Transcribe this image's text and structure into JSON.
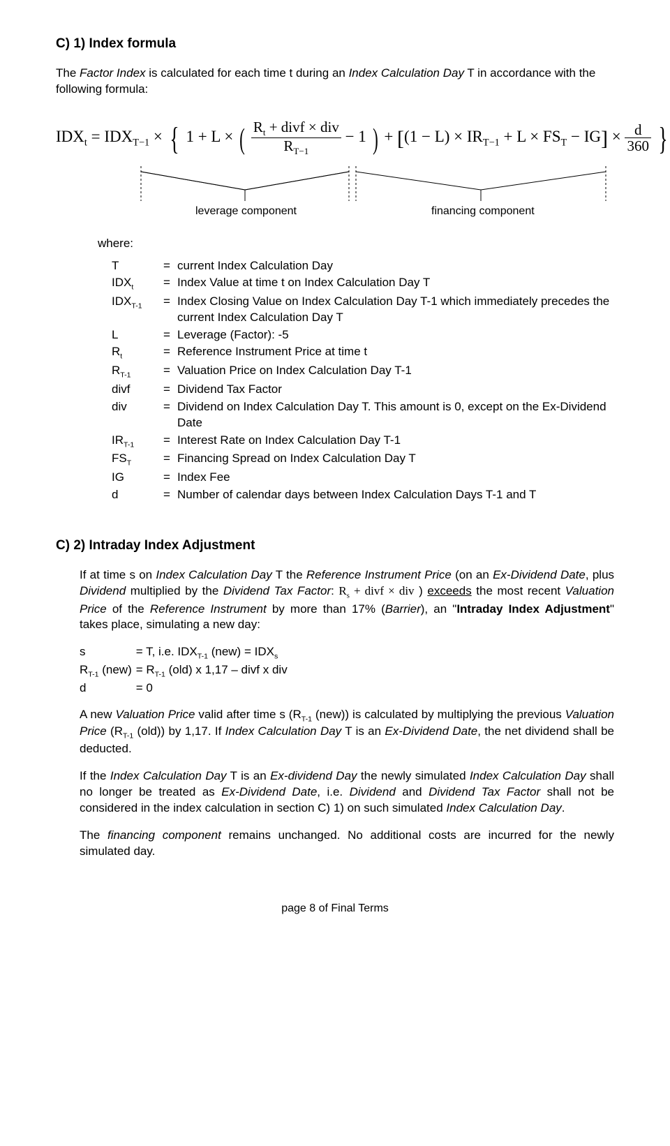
{
  "section_c1": {
    "heading": "C) 1)  Index formula",
    "intro": "The Factor Index is calculated for each time t during an Index Calculation Day T in accordance with the following formula:",
    "formula": {
      "lhs": "IDX",
      "lhs_sub": "t",
      "eq": "=",
      "rhs_prefix": "IDX",
      "rhs_prefix_sub": "T−1",
      "times": "×",
      "one_plus_L": "1 + L ×",
      "frac_num_a": "R",
      "frac_num_a_sub": "t",
      "frac_num_plus": " + divf × div",
      "frac_den": "R",
      "frac_den_sub": "T−1",
      "minus1": " − 1",
      "plus": " + ",
      "sq_open": "[",
      "one_minus_L_open": "(",
      "one_minus_L": "1 − L",
      "one_minus_L_close": ")",
      "times_IR": " × IR",
      "IR_sub": "T−1",
      "plus_LFS": " + L × FS",
      "FS_sub": "T",
      "minus_IG": " − IG",
      "sq_close": "]",
      "times_dfr": " × ",
      "dfr_num": "d",
      "dfr_den": "360"
    },
    "components": {
      "leverage": "leverage component",
      "financing": "financing component"
    },
    "where_label": "where:",
    "defs": [
      {
        "sym": "T",
        "text": "current Index Calculation Day"
      },
      {
        "sym": "IDX",
        "sub": "t",
        "text": "Index Value at time t on Index Calculation Day T"
      },
      {
        "sym": "IDX",
        "sub": "T-1",
        "text": "Index Closing Value on Index Calculation Day T-1 which immediately precedes the current Index Calculation Day T"
      },
      {
        "sym": "L",
        "text": "Leverage (Factor): -5"
      },
      {
        "sym": "R",
        "sub": "t",
        "text": "Reference Instrument Price at time t"
      },
      {
        "sym": "R",
        "sub": "T-1",
        "text": "Valuation Price on Index Calculation Day T-1"
      },
      {
        "sym": "divf",
        "text": "Dividend Tax Factor"
      },
      {
        "sym": "div",
        "text": "Dividend on Index Calculation Day T. This amount is 0, except on the Ex-Dividend Date"
      },
      {
        "sym": "IR",
        "sub": "T-1",
        "text": "Interest Rate on Index Calculation Day T-1"
      },
      {
        "sym": "FS",
        "sub": "T",
        "text": "Financing Spread on Index Calculation Day T"
      },
      {
        "sym": "IG",
        "text": "Index Fee"
      },
      {
        "sym": "d",
        "text": "Number of calendar days between Index Calculation Days T-1 and T"
      }
    ]
  },
  "section_c2": {
    "heading": "C) 2)  Intraday Index Adjustment",
    "p1_a": "If at time s on ",
    "p1_b": "Index Calculation Day",
    "p1_c": " T the ",
    "p1_d": "Reference Instrument Price",
    "p1_e": " (on an ",
    "p1_f": "Ex-Dividend Date",
    "p1_g": ", plus ",
    "p1_h": "Dividend",
    "p1_i": " multiplied by the ",
    "p1_j": "Dividend Tax Factor",
    "p1_k": ": ",
    "p1_formula": "R",
    "p1_formula_sub": "s",
    "p1_formula_tail": " + divf × div",
    "p1_l": " ) ",
    "p1_m": "exceeds",
    "p1_n": " the most recent ",
    "p1_o": "Valuation Price",
    "p1_p": " of the ",
    "p1_q": "Reference Instrument",
    "p1_r": " by more than 17% (",
    "p1_s": "Barrier",
    "p1_t": "), an \"",
    "p1_u": "Intraday Index Adjustment",
    "p1_v": "\" takes place, simulating a new day:",
    "mini": [
      {
        "c1": "s",
        "c2": "=  T, i.e. IDXT-1 (new) = IDXs"
      },
      {
        "c1": "RT-1 (new)",
        "c2": "=  RT-1 (old) x 1,17 – divf x div"
      },
      {
        "c1": "d",
        "c2": "=  0"
      }
    ],
    "mini_row1_c1": "s",
    "mini_row1_c2a": "=  T, i.e. IDX",
    "mini_row1_c2b": " (new) = IDX",
    "mini_row2_c1a": "R",
    "mini_row2_c1b": " (new)",
    "mini_row2_c2a": "=  R",
    "mini_row2_c2b": " (old) x 1,17 – divf x div",
    "mini_row3_c1": "d",
    "mini_row3_c2": "=  0",
    "p2_a": "A new ",
    "p2_b": "Valuation Price",
    "p2_c": " valid after time s (R",
    "p2_d": " (new)) is calculated by multiplying the previous ",
    "p2_e": "Valuation Price",
    "p2_f": " (R",
    "p2_g": " (old)) by 1,17. If ",
    "p2_h": "Index Calculation Day",
    "p2_i": " T is an ",
    "p2_j": "Ex-Dividend Date",
    "p2_k": ", the net dividend shall be deducted.",
    "p3_a": "If the ",
    "p3_b": "Index Calculation Day",
    "p3_c": " T is an ",
    "p3_d": "Ex-dividend Day",
    "p3_e": " the newly simulated ",
    "p3_f": "Index Calculation Day",
    "p3_g": " shall no longer be treated as ",
    "p3_h": "Ex-Dividend Date",
    "p3_i": ", i.e. ",
    "p3_j": "Dividend",
    "p3_k": " and ",
    "p3_l": "Dividend Tax Factor",
    "p3_m": " shall not be considered in the index calculation in section C) 1) on such simulated ",
    "p3_n": "Index Calculation Day",
    "p3_o": ".",
    "p4_a": "The ",
    "p4_b": "financing component",
    "p4_c": " remains unchanged. No additional costs are incurred for the newly simulated day."
  },
  "footer": "page 8 of Final Terms"
}
